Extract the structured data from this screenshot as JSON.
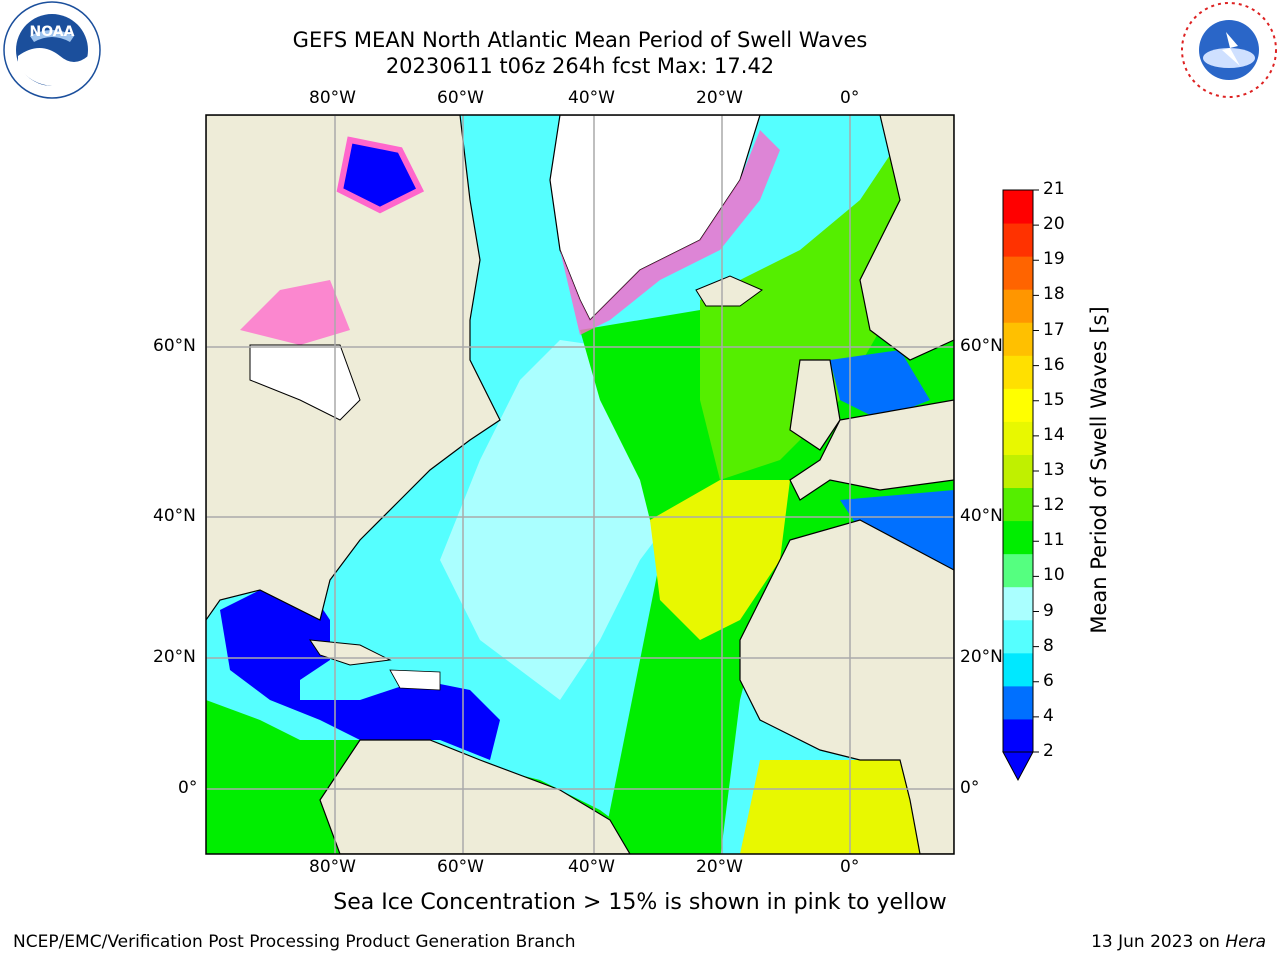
{
  "header": {
    "title_line1": "GEFS MEAN North Atlantic Mean Period of Swell Waves",
    "title_line2": "20230611 t06z 264h fcst   Max: 17.42"
  },
  "logos": {
    "left": "noaa-logo",
    "right": "national-weather-service-logo"
  },
  "map": {
    "lon_labels": [
      "80°W",
      "60°W",
      "40°W",
      "20°W",
      "0°"
    ],
    "lat_labels": [
      "60°N",
      "40°N",
      "20°N",
      "0°"
    ],
    "extent": {
      "lon": [
        -100,
        15
      ],
      "lat": [
        -8,
        80
      ]
    },
    "colors": {
      "land": "#eeecd8",
      "ice_free_nan": "#ffffff",
      "coast": "#000000",
      "grid": "#aaaaaa"
    }
  },
  "colorbar": {
    "label": "Mean Period of Swell Waves [s]",
    "ticks": [
      "21",
      "20",
      "19",
      "18",
      "17",
      "16",
      "15",
      "14",
      "13",
      "12",
      "11",
      "10",
      "9",
      "8",
      "6",
      "4",
      "2"
    ],
    "colors": [
      "#0000ff",
      "#0070ff",
      "#00e8ff",
      "#55ffff",
      "#aaffff",
      "#55ff80",
      "#00ee00",
      "#55ee00",
      "#c0f000",
      "#e8f800",
      "#ffff00",
      "#ffe000",
      "#ffc000",
      "#ff9600",
      "#ff6400",
      "#ff3200",
      "#ff0000"
    ],
    "extend": "min"
  },
  "note": "Sea Ice Concentration > 15% is shown in pink to yellow",
  "footer": {
    "left": "NCEP/EMC/Verification Post Processing Product Generation Branch",
    "right_date": "13 Jun 2023 on ",
    "right_host": "Hera"
  }
}
